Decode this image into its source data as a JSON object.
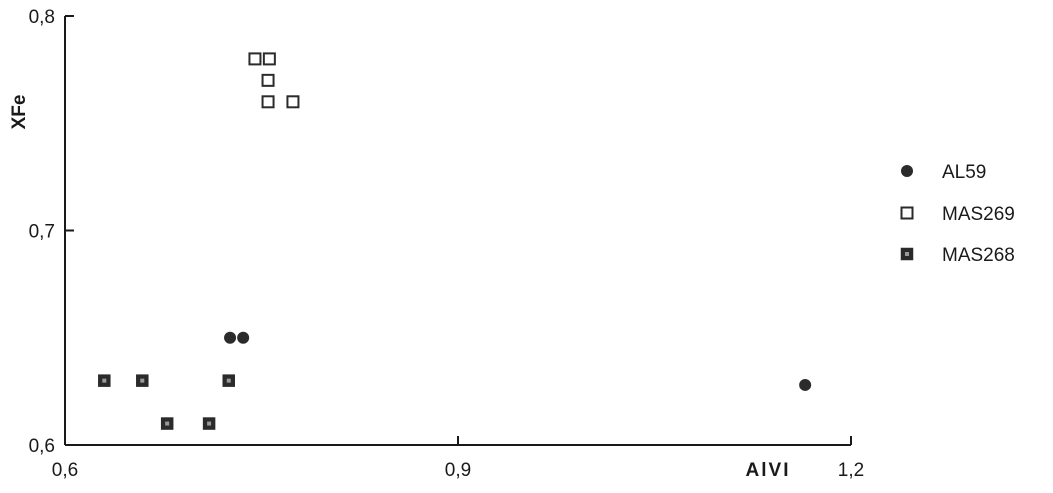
{
  "chart_data": {
    "type": "scatter",
    "title": "",
    "xlabel": "AlVI",
    "ylabel": "XFe",
    "xlim": [
      0.6,
      1.2
    ],
    "ylim": [
      0.6,
      0.8
    ],
    "x_ticks": [
      0.6,
      0.9,
      1.2
    ],
    "y_ticks": [
      0.6,
      0.7,
      0.8
    ],
    "x_tick_labels": [
      "0,6",
      "0,9",
      "1,2"
    ],
    "y_tick_labels": [
      "0,6",
      "0,7",
      "0,8"
    ],
    "grid": false,
    "legend_position": "right",
    "series": [
      {
        "name": "AL59",
        "marker": "filled-circle",
        "color": "#2b2b2b",
        "points": [
          {
            "x": 0.726,
            "y": 0.65
          },
          {
            "x": 0.736,
            "y": 0.65
          },
          {
            "x": 1.165,
            "y": 0.628
          }
        ]
      },
      {
        "name": "MAS269",
        "marker": "open-square",
        "color": "#2b2b2b",
        "points": [
          {
            "x": 0.745,
            "y": 0.78
          },
          {
            "x": 0.756,
            "y": 0.78
          },
          {
            "x": 0.755,
            "y": 0.77
          },
          {
            "x": 0.755,
            "y": 0.76
          },
          {
            "x": 0.774,
            "y": 0.76
          }
        ]
      },
      {
        "name": "MAS268",
        "marker": "dotted-square",
        "color": "#2b2b2b",
        "points": [
          {
            "x": 0.63,
            "y": 0.63
          },
          {
            "x": 0.659,
            "y": 0.63
          },
          {
            "x": 0.725,
            "y": 0.63
          },
          {
            "x": 0.678,
            "y": 0.61
          },
          {
            "x": 0.71,
            "y": 0.61
          }
        ]
      }
    ]
  }
}
